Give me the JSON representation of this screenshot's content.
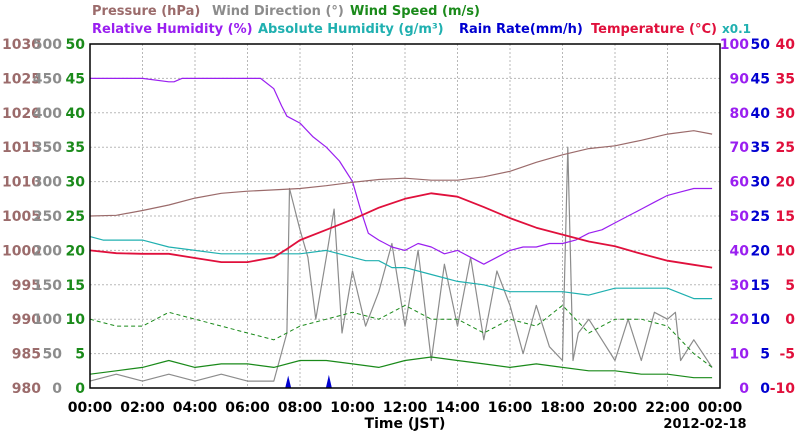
{
  "chart_data": {
    "type": "line",
    "legend": {
      "row1": [
        {
          "text": "Pressure (hPa)",
          "color": "#9b6b6b"
        },
        {
          "text": "Wind Direction (°)",
          "color": "#8c8c8c"
        },
        {
          "text": "Wind Speed (m/s)",
          "color": "#1a8a1a"
        }
      ],
      "row2": [
        {
          "text": "Relative Humidity (%)",
          "color": "#9a1ff0"
        },
        {
          "text": "Absolute Humidity (g/m³)",
          "color": "#20b0b0"
        },
        {
          "text": "Rain Rate(mm/h)",
          "color": "#0000d0"
        },
        {
          "text": "Temperature (°C)",
          "color": "#e0103c"
        }
      ],
      "multiplier": {
        "text": "x0.1",
        "color": "#20b0b0"
      }
    },
    "xlabel": "Time (JST)",
    "date_label": "2012-02-18",
    "x_ticks": [
      "00:00",
      "02:00",
      "04:00",
      "06:00",
      "08:00",
      "10:00",
      "12:00",
      "14:00",
      "16:00",
      "18:00",
      "20:00",
      "22:00",
      "00:00"
    ],
    "axes": {
      "pressure": {
        "ticks": [
          "1030",
          "1025",
          "1020",
          "1015",
          "1010",
          "1005",
          "1000",
          "995",
          "990",
          "985",
          "980"
        ],
        "range": [
          980,
          1030
        ],
        "color": "#9b6b6b"
      },
      "wind_direction": {
        "ticks": [
          "500",
          "450",
          "400",
          "350",
          "300",
          "250",
          "200",
          "150",
          "100",
          "50",
          "0"
        ],
        "range": [
          0,
          500
        ],
        "color": "#8c8c8c"
      },
      "wind_speed": {
        "ticks": [
          "50",
          "45",
          "40",
          "35",
          "30",
          "25",
          "20",
          "15",
          "10",
          "5",
          "0"
        ],
        "range": [
          0,
          50
        ],
        "color": "#1a8a1a"
      },
      "relative_humidity": {
        "ticks": [
          "100",
          "90",
          "80",
          "70",
          "60",
          "50",
          "40",
          "30",
          "20",
          "10",
          "0"
        ],
        "range": [
          0,
          100
        ],
        "color": "#9a1ff0"
      },
      "rain_rate": {
        "ticks": [
          "50",
          "45",
          "40",
          "35",
          "30",
          "25",
          "20",
          "15",
          "10",
          "5",
          "0"
        ],
        "range": [
          0,
          50
        ],
        "color": "#0000d0"
      },
      "temperature": {
        "ticks": [
          "40",
          "35",
          "30",
          "25",
          "20",
          "15",
          "10",
          "5",
          "0",
          "-5",
          "-10"
        ],
        "range": [
          -10,
          40
        ],
        "color": "#e0103c"
      }
    },
    "x_range_hours": [
      0,
      24
    ],
    "series": [
      {
        "name": "Pressure (hPa)",
        "color": "#9b6b6b",
        "axis": "pressure",
        "x": [
          0,
          1,
          2,
          3,
          4,
          5,
          6,
          7,
          8,
          9,
          10,
          11,
          12,
          13,
          14,
          15,
          16,
          17,
          18,
          19,
          20,
          21,
          22,
          23,
          23.7
        ],
        "y": [
          1005.0,
          1005.1,
          1005.8,
          1006.6,
          1007.6,
          1008.3,
          1008.6,
          1008.8,
          1009.0,
          1009.4,
          1009.9,
          1010.3,
          1010.5,
          1010.2,
          1010.2,
          1010.7,
          1011.5,
          1012.8,
          1013.9,
          1014.8,
          1015.2,
          1016.0,
          1016.9,
          1017.4,
          1016.9
        ]
      },
      {
        "name": "Relative Humidity (%)",
        "color": "#9a1ff0",
        "axis": "relative_humidity",
        "x": [
          0,
          1,
          2,
          3,
          3.2,
          3.5,
          4,
          5,
          6,
          6.5,
          7,
          7.3,
          7.5,
          8,
          8.5,
          9,
          9.5,
          10,
          10.3,
          10.6,
          11,
          11.5,
          12,
          12.5,
          13,
          13.5,
          14,
          14.5,
          15,
          15.5,
          16,
          16.5,
          17,
          17.5,
          18,
          18.5,
          19,
          19.5,
          20,
          20.5,
          21,
          21.5,
          22,
          22.5,
          23,
          23.7
        ],
        "y": [
          90,
          90,
          90,
          89,
          89,
          90,
          90,
          90,
          90,
          90,
          87,
          82,
          79,
          77,
          73,
          70,
          66,
          60,
          52,
          45,
          43,
          41,
          40,
          42,
          41,
          39,
          40,
          38,
          36,
          38,
          40,
          41,
          41,
          42,
          42,
          43,
          45,
          46,
          48,
          50,
          52,
          54,
          56,
          57,
          58,
          58
        ]
      },
      {
        "name": "Absolute Humidity (g/m³)",
        "color": "#20b0b0",
        "axis": "relative_humidity",
        "scale_note": "x0.1",
        "x": [
          0,
          0.5,
          1,
          2,
          3,
          4,
          5,
          6,
          7,
          8,
          9,
          10,
          10.5,
          11,
          11.5,
          12,
          13,
          14,
          15,
          16,
          17,
          18,
          19,
          20,
          21,
          22,
          23,
          23.7
        ],
        "y": [
          44,
          43,
          43,
          43,
          41,
          40,
          39,
          39,
          39,
          39,
          40,
          38,
          37,
          37,
          35,
          35,
          33,
          31,
          30,
          28,
          28,
          28,
          27,
          29,
          29,
          29,
          26,
          26
        ]
      },
      {
        "name": "Temperature (°C)",
        "color": "#e0103c",
        "axis": "temperature",
        "x": [
          0,
          1,
          2,
          3,
          4,
          5,
          6,
          7,
          7.5,
          8,
          9,
          10,
          11,
          12,
          13,
          14,
          15,
          16,
          17,
          18,
          19,
          20,
          21,
          22,
          23,
          23.7
        ],
        "y": [
          10.0,
          9.6,
          9.5,
          9.5,
          8.9,
          8.3,
          8.3,
          9.0,
          10.2,
          11.5,
          13.0,
          14.5,
          16.2,
          17.5,
          18.3,
          17.8,
          16.3,
          14.7,
          13.3,
          12.3,
          11.3,
          10.6,
          9.5,
          8.5,
          7.9,
          7.5
        ]
      },
      {
        "name": "Wind Speed (m/s)",
        "color": "#1a8a1a",
        "axis": "wind_speed",
        "style": "solid-and-dashed",
        "x": [
          0,
          1,
          2,
          3,
          4,
          5,
          6,
          7,
          8,
          9,
          10,
          11,
          12,
          13,
          14,
          15,
          16,
          17,
          18,
          19,
          20,
          21,
          22,
          23,
          23.7
        ],
        "y": [
          2.0,
          2.5,
          3.0,
          4.0,
          3.0,
          3.5,
          3.5,
          3.0,
          4.0,
          4.0,
          3.5,
          3.0,
          4.0,
          4.5,
          4.0,
          3.5,
          3.0,
          3.5,
          3.0,
          2.5,
          2.5,
          2.0,
          2.0,
          1.5,
          1.5
        ],
        "y_gust": [
          10,
          9,
          9,
          11,
          10,
          9,
          8,
          7,
          9,
          10,
          11,
          10,
          12,
          10,
          10,
          8,
          10,
          9,
          12,
          8,
          10,
          10,
          9,
          5,
          3
        ]
      },
      {
        "name": "Wind Direction (°)",
        "color": "#8c8c8c",
        "axis": "wind_direction",
        "x": [
          0,
          1,
          2,
          3,
          4,
          5,
          6,
          7,
          7.5,
          7.6,
          8,
          8.3,
          8.6,
          9,
          9.3,
          9.6,
          10,
          10.5,
          11,
          11.5,
          12,
          12.5,
          13,
          13.5,
          14,
          14.5,
          15,
          15.5,
          16,
          16.5,
          17,
          17.5,
          18,
          18.2,
          18.4,
          18.6,
          19,
          19.5,
          20,
          20.5,
          21,
          21.5,
          22,
          22.3,
          22.5,
          23,
          23.7
        ],
        "y": [
          10,
          20,
          10,
          20,
          10,
          20,
          10,
          10,
          80,
          290,
          230,
          190,
          100,
          190,
          260,
          80,
          170,
          90,
          140,
          210,
          90,
          200,
          40,
          180,
          90,
          190,
          70,
          170,
          120,
          50,
          120,
          60,
          40,
          350,
          40,
          80,
          100,
          70,
          40,
          100,
          40,
          110,
          100,
          110,
          40,
          70,
          30
        ]
      },
      {
        "name": "Rain Rate(mm/h)",
        "color": "#0000d0",
        "axis": "rain_rate",
        "style": "spikes",
        "x": [
          7.55,
          9.1
        ],
        "y": [
          1.8,
          1.9
        ]
      }
    ]
  }
}
